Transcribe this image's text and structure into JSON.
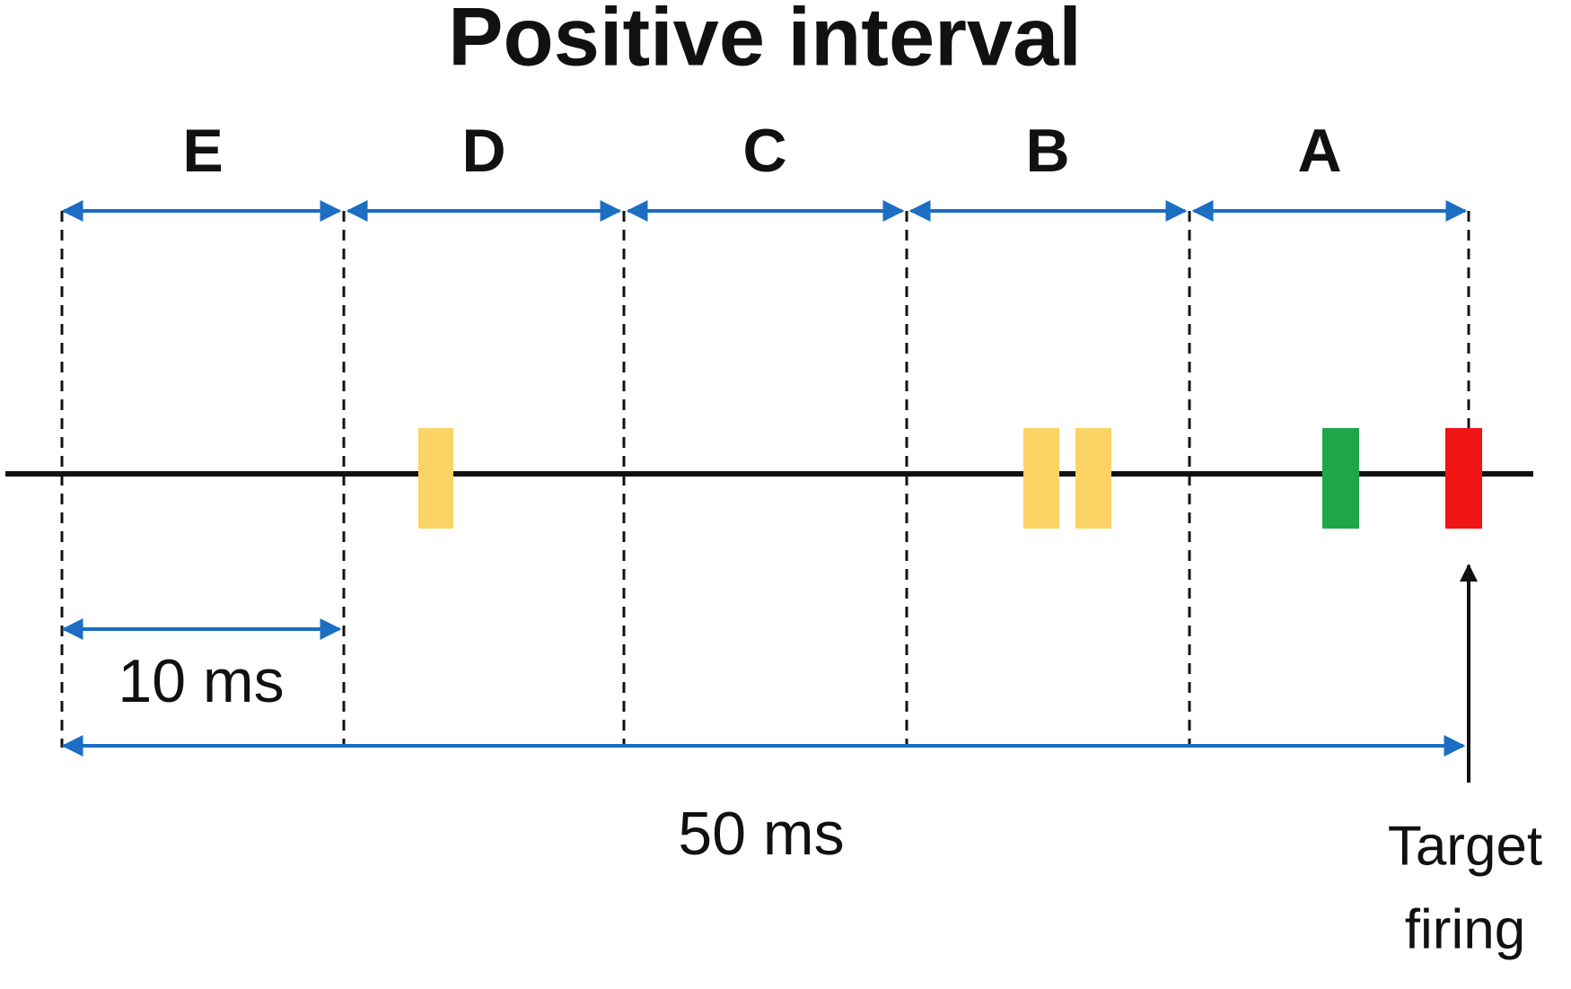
{
  "title": "Positive interval",
  "intervals": [
    "E",
    "D",
    "C",
    "B",
    "A"
  ],
  "short_span": "10 ms",
  "total_span": "50 ms",
  "target_label": [
    "Target",
    "firing"
  ]
}
